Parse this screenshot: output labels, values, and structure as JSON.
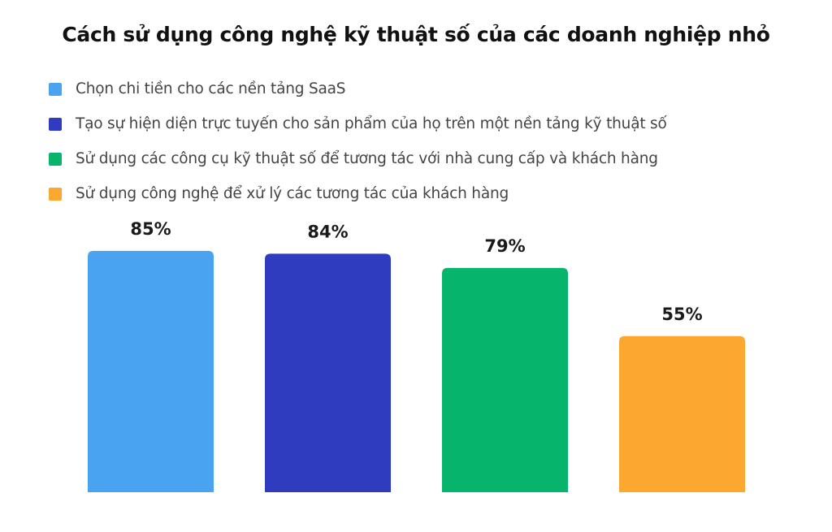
{
  "chart_data": {
    "type": "bar",
    "title": "Cách sử dụng công nghệ kỹ thuật số của các doanh nghiệp nhỏ",
    "categories": [
      "Chọn chi tiền cho các nền tảng SaaS",
      "Tạo sự hiện diện trực tuyến cho sản phẩm của họ trên một nền tảng kỹ thuật số",
      "Sử dụng các công cụ kỹ thuật số để tương tác với nhà cung cấp và khách hàng",
      "Sử dụng công nghệ để xử lý các tương tác của khách hàng"
    ],
    "values": [
      85,
      84,
      79,
      55
    ],
    "value_labels": [
      "85%",
      "84%",
      "79%",
      "55%"
    ],
    "colors": [
      "#4aa3f0",
      "#2f3cbf",
      "#06b46b",
      "#fca72f"
    ],
    "ylim": [
      0,
      100
    ],
    "grid": false,
    "legend_position": "top-left",
    "xlabel": "",
    "ylabel": ""
  }
}
